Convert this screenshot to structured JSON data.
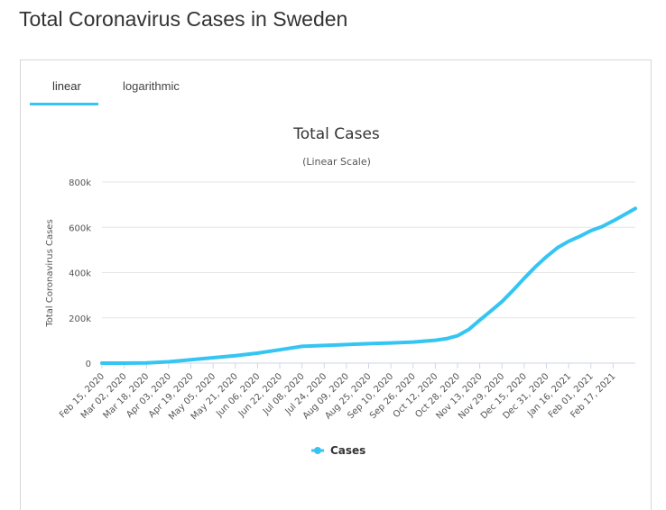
{
  "page": {
    "title": "Total Coronavirus Cases in Sweden"
  },
  "tabs": [
    {
      "label": "linear",
      "active": true
    },
    {
      "label": "logarithmic",
      "active": false
    }
  ],
  "colors": {
    "series": "#35c5f3",
    "grid": "#e6e6e6",
    "axis": "#ccd6eb",
    "tab_active": "#35c5f3"
  },
  "chart_data": {
    "type": "line",
    "title": "Total Cases",
    "subtitle": "(Linear Scale)",
    "xlabel": "",
    "ylabel": "Total Coronavirus Cases",
    "x_start": "2020-02-15",
    "x_end": "2021-03-05",
    "ylim": [
      0,
      800000
    ],
    "yticks": [
      0,
      200000,
      400000,
      600000,
      800000
    ],
    "ytick_labels": [
      "0",
      "200k",
      "400k",
      "600k",
      "800k"
    ],
    "xtick_labels": [
      "Feb 15, 2020",
      "Mar 02, 2020",
      "Mar 18, 2020",
      "Apr 03, 2020",
      "Apr 19, 2020",
      "May 05, 2020",
      "May 21, 2020",
      "Jun 06, 2020",
      "Jun 22, 2020",
      "Jul 08, 2020",
      "Jul 24, 2020",
      "Aug 09, 2020",
      "Aug 25, 2020",
      "Sep 10, 2020",
      "Sep 26, 2020",
      "Oct 12, 2020",
      "Oct 28, 2020",
      "Nov 13, 2020",
      "Nov 29, 2020",
      "Dec 15, 2020",
      "Dec 31, 2020",
      "Jan 16, 2021",
      "Feb 01, 2021",
      "Feb 17, 2021"
    ],
    "grid": true,
    "legend": "bottom-center",
    "series": [
      {
        "name": "Cases",
        "x": [
          "2020-02-15",
          "2020-03-02",
          "2020-03-18",
          "2020-04-03",
          "2020-04-19",
          "2020-05-05",
          "2020-05-21",
          "2020-06-06",
          "2020-06-22",
          "2020-07-08",
          "2020-07-24",
          "2020-08-09",
          "2020-08-25",
          "2020-09-10",
          "2020-09-26",
          "2020-10-12",
          "2020-10-20",
          "2020-10-28",
          "2020-11-05",
          "2020-11-13",
          "2020-11-21",
          "2020-11-29",
          "2020-12-07",
          "2020-12-15",
          "2020-12-23",
          "2020-12-31",
          "2021-01-08",
          "2021-01-16",
          "2021-01-24",
          "2021-02-01",
          "2021-02-09",
          "2021-02-17",
          "2021-02-25",
          "2021-03-05"
        ],
        "values": [
          0,
          50,
          1300,
          6000,
          15000,
          24000,
          33000,
          44000,
          59000,
          74000,
          78000,
          82000,
          86000,
          89000,
          93000,
          101000,
          108000,
          121000,
          148000,
          190000,
          230000,
          272000,
          322000,
          375000,
          425000,
          470000,
          510000,
          538000,
          560000,
          585000,
          603000,
          628000,
          655000,
          683000
        ]
      }
    ]
  }
}
